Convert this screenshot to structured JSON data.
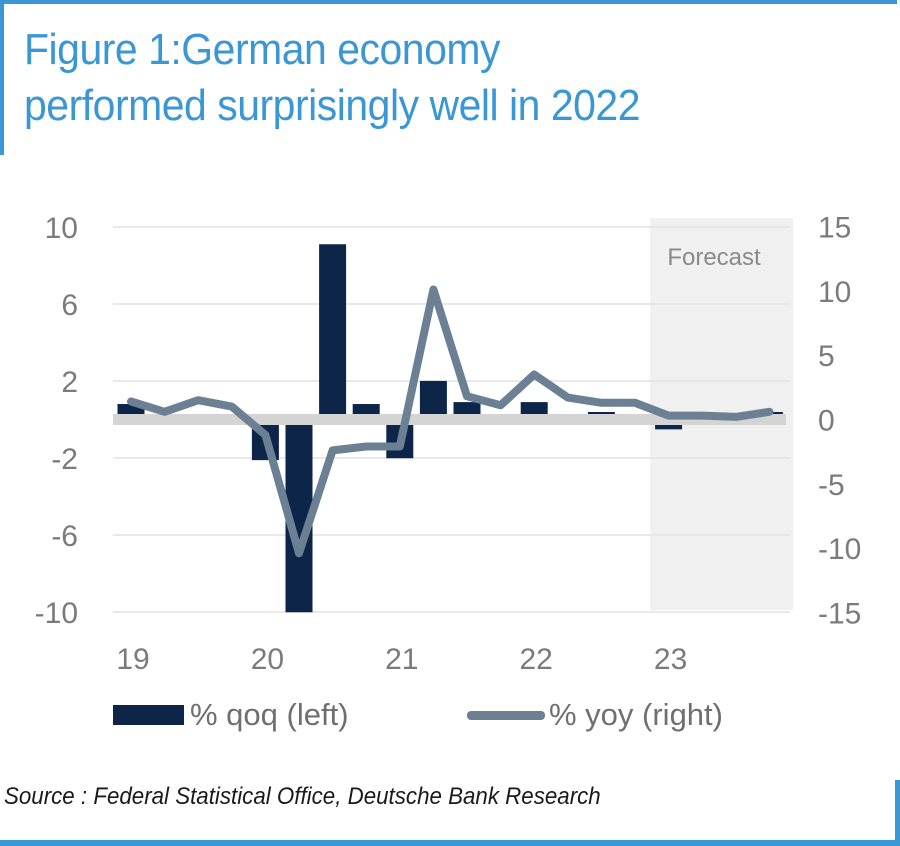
{
  "header": {
    "title_line1": "Figure 1:German economy",
    "title_line2": "performed surprisingly well in 2022"
  },
  "colors": {
    "accent": "#3a97d4",
    "bar": "#0c2548",
    "line": "#6c8094",
    "zero_band": "#d4d4d4",
    "forecast_shade": "#f0f0f0",
    "grid": "#e2e2e2"
  },
  "chart_data": {
    "type": "bar",
    "title": "Figure 1:German economy performed surprisingly well in 2022",
    "x": [
      "2019Q1",
      "2019Q2",
      "2019Q3",
      "2019Q4",
      "2020Q1",
      "2020Q2",
      "2020Q3",
      "2020Q4",
      "2021Q1",
      "2021Q2",
      "2021Q3",
      "2021Q4",
      "2022Q1",
      "2022Q2",
      "2022Q3",
      "2022Q4",
      "2023Q1",
      "2023Q2",
      "2023Q3",
      "2023Q4"
    ],
    "x_tick_labels": [
      "19",
      "20",
      "21",
      "22",
      "23"
    ],
    "series": [
      {
        "name": "% qoq (left)",
        "type": "bar",
        "axis": "left",
        "values": [
          0.7,
          0.0,
          0.0,
          0.0,
          -1.8,
          -9.7,
          9.0,
          0.7,
          -1.7,
          1.9,
          0.8,
          0.0,
          0.8,
          0.0,
          0.2,
          0.0,
          -0.2,
          0.0,
          0.0,
          0.1
        ]
      },
      {
        "name": "% yoy (right)",
        "type": "line",
        "axis": "right",
        "values": [
          1.4,
          0.6,
          1.5,
          1.0,
          -1.2,
          -10.4,
          -2.4,
          -2.1,
          -2.1,
          10.1,
          1.8,
          1.1,
          3.5,
          1.7,
          1.3,
          1.3,
          0.3,
          0.3,
          0.2,
          0.6
        ]
      }
    ],
    "left_axis": {
      "ylim": [
        -10,
        10
      ],
      "ticks": [
        10,
        6,
        2,
        -2,
        -6,
        -10
      ]
    },
    "right_axis": {
      "ylim": [
        -15,
        15
      ],
      "ticks": [
        15,
        10,
        5,
        0,
        -5,
        -10,
        -15
      ]
    },
    "annotations": [
      {
        "text": "Forecast",
        "shaded_from": "2023Q1",
        "shaded_to": "2023Q4"
      }
    ],
    "grid": true,
    "legend_position": "bottom",
    "xlabel": "",
    "ylabel": ""
  },
  "legend": {
    "bar_label": "% qoq (left)",
    "line_label": "% yoy (right)"
  },
  "source": "Source : Federal Statistical Office, Deutsche Bank Research"
}
